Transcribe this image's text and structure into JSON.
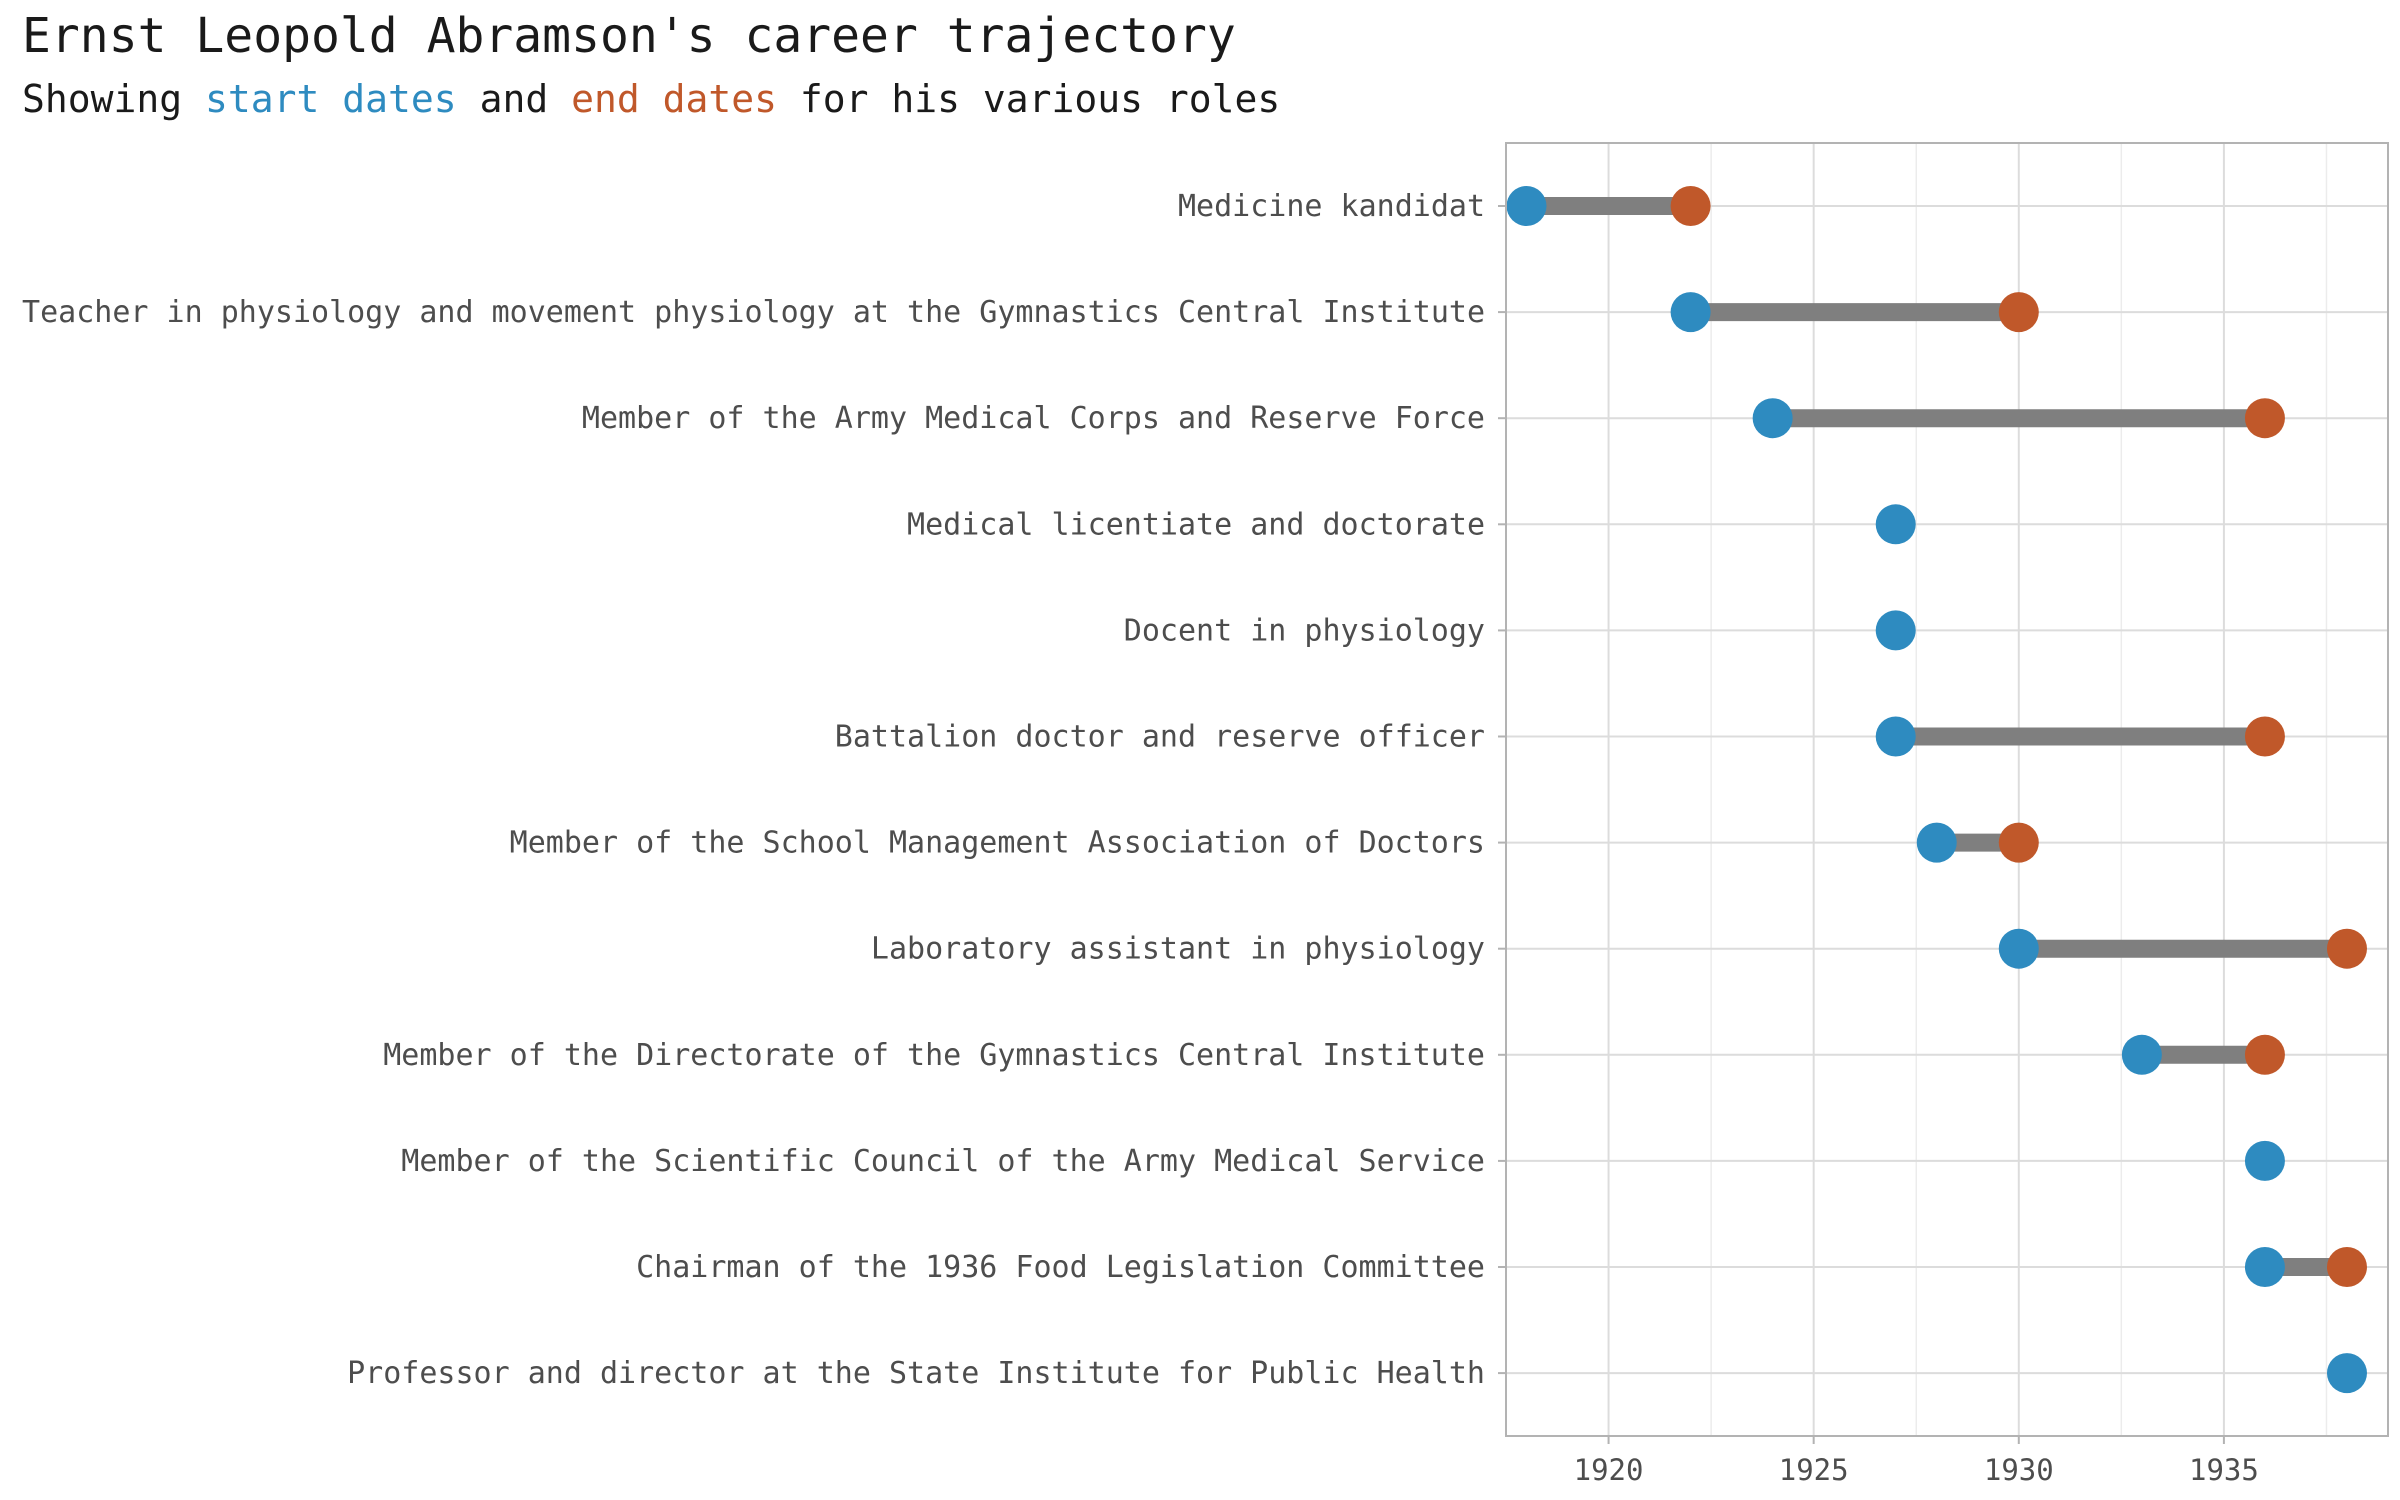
{
  "chart_data": {
    "type": "dumbbell",
    "title": "Ernst Leopold Abramson's career trajectory",
    "subtitle": {
      "prefix": "Showing ",
      "start_word": "start dates",
      "middle": " and ",
      "end_word": "end dates",
      "suffix": " for his various roles"
    },
    "colors": {
      "start": "#2e8bc0",
      "end": "#c0582a",
      "connector": "#7f7f7f"
    },
    "x_ticks": [
      1920,
      1925,
      1930,
      1935
    ],
    "x_tick_labels": [
      "1920",
      "1925",
      "1930",
      "1935"
    ],
    "xlim": [
      1917.5,
      1939
    ],
    "grid": true,
    "roles": [
      {
        "label": "Medicine kandidat",
        "start": 1918,
        "end": 1922
      },
      {
        "label": "Teacher in physiology and movement physiology at the Gymnastics Central Institute",
        "start": 1922,
        "end": 1930
      },
      {
        "label": "Member of the Army Medical Corps and Reserve Force",
        "start": 1924,
        "end": 1936
      },
      {
        "label": "Medical licentiate and doctorate",
        "start": 1927,
        "end": null
      },
      {
        "label": "Docent in physiology",
        "start": 1927,
        "end": null
      },
      {
        "label": "Battalion doctor and reserve officer",
        "start": 1927,
        "end": 1936
      },
      {
        "label": "Member of the School Management Association of Doctors",
        "start": 1928,
        "end": 1930
      },
      {
        "label": "Laboratory assistant in physiology",
        "start": 1930,
        "end": 1938
      },
      {
        "label": "Member of the Directorate of the Gymnastics Central Institute",
        "start": 1933,
        "end": 1936
      },
      {
        "label": "Member of the Scientific Council of the Army Medical Service",
        "start": 1936,
        "end": null
      },
      {
        "label": "Chairman of the 1936 Food Legislation Committee",
        "start": 1936,
        "end": 1938
      },
      {
        "label": "Professor and director at the State Institute for Public Health",
        "start": 1938,
        "end": null
      }
    ]
  }
}
